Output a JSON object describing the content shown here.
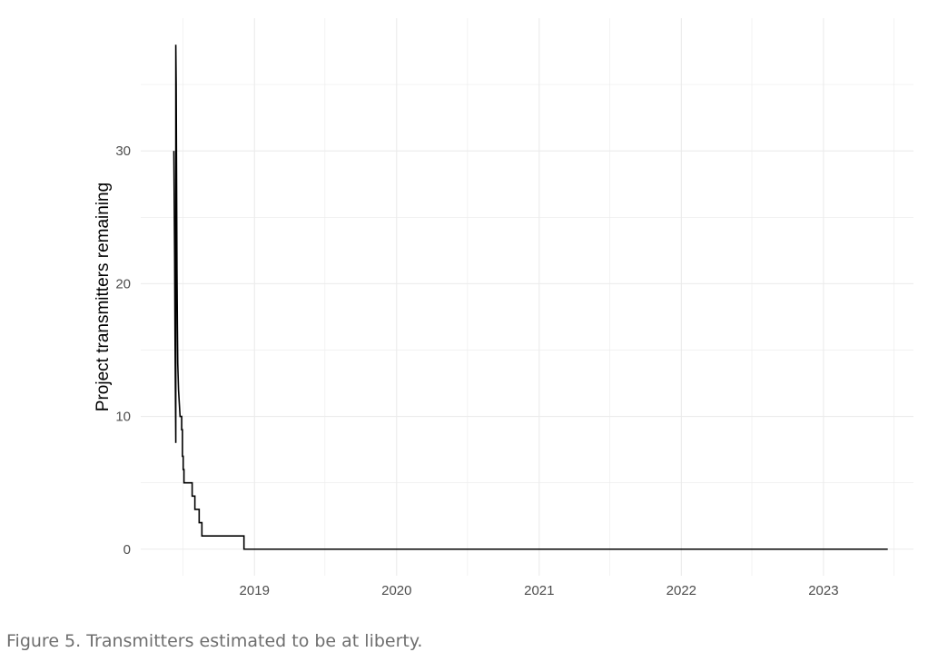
{
  "caption": "Figure 5. Transmitters estimated to be at liberty.",
  "chart_data": {
    "type": "line",
    "title": "",
    "xlabel": "",
    "ylabel": "Project transmitters remaining",
    "x_axis_type": "date",
    "xlim": [
      "2018-03-15",
      "2023-08-20"
    ],
    "ylim": [
      -2,
      40
    ],
    "x_ticks": [
      {
        "date": "2019-01-01",
        "label": "2019"
      },
      {
        "date": "2020-01-01",
        "label": "2020"
      },
      {
        "date": "2021-01-01",
        "label": "2021"
      },
      {
        "date": "2022-01-01",
        "label": "2022"
      },
      {
        "date": "2023-01-01",
        "label": "2023"
      }
    ],
    "x_minor_ticks": [
      "2018-07-01",
      "2019-07-01",
      "2020-07-01",
      "2021-07-01",
      "2022-07-01",
      "2023-07-01"
    ],
    "y_ticks": [
      0,
      10,
      20,
      30
    ],
    "y_minor_ticks": [
      5,
      15,
      25,
      35
    ],
    "grid": true,
    "legend": "none",
    "line_color": "#000000",
    "background": "#ffffff",
    "grid_color": "#ebebeb",
    "series": [
      {
        "points": [
          {
            "x": "2018-06-08",
            "y": 30
          },
          {
            "x": "2018-06-09",
            "y": 26
          },
          {
            "x": "2018-06-10",
            "y": 22
          },
          {
            "x": "2018-06-11",
            "y": 16
          },
          {
            "x": "2018-06-12",
            "y": 12
          },
          {
            "x": "2018-06-13",
            "y": 8
          },
          {
            "x": "2018-06-13",
            "y": 38
          },
          {
            "x": "2018-06-14",
            "y": 35
          },
          {
            "x": "2018-06-15",
            "y": 28
          },
          {
            "x": "2018-06-16",
            "y": 21
          },
          {
            "x": "2018-06-17",
            "y": 17
          },
          {
            "x": "2018-06-18",
            "y": 14
          },
          {
            "x": "2018-06-20",
            "y": 12
          },
          {
            "x": "2018-06-22",
            "y": 11
          },
          {
            "x": "2018-06-24",
            "y": 10
          },
          {
            "x": "2018-06-28",
            "y": 10
          },
          {
            "x": "2018-06-28",
            "y": 9
          },
          {
            "x": "2018-06-30",
            "y": 9
          },
          {
            "x": "2018-06-30",
            "y": 7
          },
          {
            "x": "2018-07-02",
            "y": 7
          },
          {
            "x": "2018-07-02",
            "y": 6
          },
          {
            "x": "2018-07-04",
            "y": 6
          },
          {
            "x": "2018-07-04",
            "y": 5
          },
          {
            "x": "2018-07-25",
            "y": 5
          },
          {
            "x": "2018-07-25",
            "y": 4
          },
          {
            "x": "2018-08-01",
            "y": 4
          },
          {
            "x": "2018-08-01",
            "y": 3
          },
          {
            "x": "2018-08-12",
            "y": 3
          },
          {
            "x": "2018-08-12",
            "y": 2
          },
          {
            "x": "2018-08-19",
            "y": 2
          },
          {
            "x": "2018-08-19",
            "y": 1
          },
          {
            "x": "2018-12-05",
            "y": 1
          },
          {
            "x": "2018-12-05",
            "y": 0
          },
          {
            "x": "2023-06-15",
            "y": 0
          }
        ]
      }
    ]
  }
}
